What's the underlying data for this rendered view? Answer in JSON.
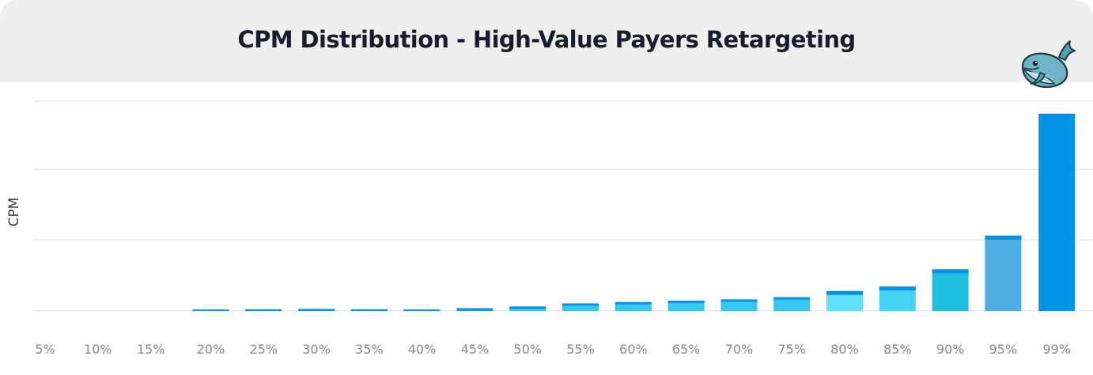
{
  "chart_data": {
    "type": "bar",
    "title": "CPM Distribution - High-Value Payers Retargeting",
    "xlabel": "",
    "ylabel": "CPM",
    "categories": [
      "5%",
      "10%",
      "15%",
      "20%",
      "25%",
      "30%",
      "35%",
      "40%",
      "45%",
      "50%",
      "55%",
      "60%",
      "65%",
      "70%",
      "75%",
      "80%",
      "85%",
      "90%",
      "95%",
      "99%"
    ],
    "values": [
      0,
      0,
      0,
      0.3,
      0.35,
      0.45,
      0.35,
      0.3,
      0.6,
      1.0,
      1.7,
      2.0,
      2.3,
      2.6,
      3.1,
      4.5,
      5.5,
      9.4,
      17.0,
      44.5
    ],
    "ylim": [
      0,
      50
    ],
    "grid": true,
    "y_tick_labels_shown": false,
    "colors": [
      "#0094e6",
      "#0094e6",
      "#0094e6",
      "#0094e6",
      "#0094e6",
      "#0094e6",
      "#0094e6",
      "#0094e6",
      "#37c8f2",
      "#37c8f2",
      "#37c8f2",
      "#37c8f2",
      "#37c8f2",
      "#37c8f2",
      "#37c8f2",
      "#5ee0fa",
      "#45d3f5",
      "#1ebfdf",
      "#4dace2",
      "#0094e6"
    ],
    "cap_color": "#0b8ee3"
  },
  "mascot": {
    "icon": "whale-icon"
  }
}
